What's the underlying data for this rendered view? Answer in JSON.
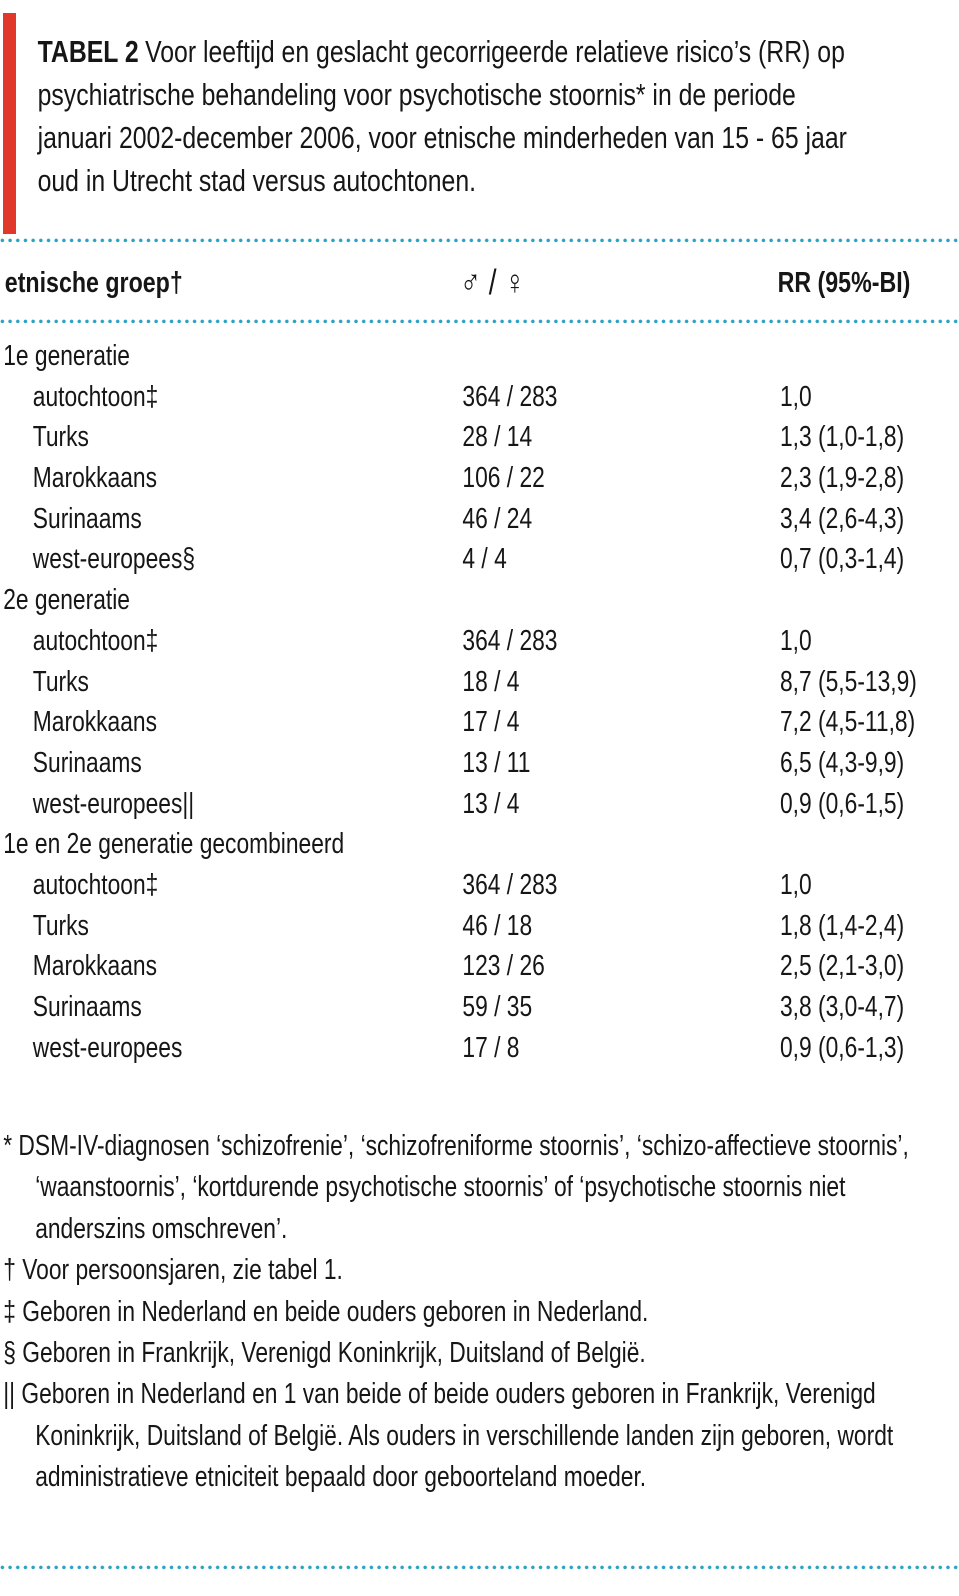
{
  "colors": {
    "accent_bar": "#E0392B",
    "dotted_rule": "#2BA2C4",
    "text": "#161616"
  },
  "title": {
    "label": "TABEL 2",
    "text": "Voor leeftijd en geslacht gecorrigeerde relatieve risico’s (RR) op psychiatrische behandeling voor psychotische stoornis* in de periode januari 2002-december 2006, voor etnische minderheden van 15 - 65 jaar oud in Utrecht stad versus autochtonen."
  },
  "table": {
    "columns": [
      {
        "key": "group",
        "label": "etnische groep†"
      },
      {
        "key": "mf",
        "label": "♂ / ♀"
      },
      {
        "key": "rr",
        "label": "RR (95%-BI)"
      }
    ],
    "sections": [
      {
        "header": "1e generatie",
        "rows": [
          {
            "group": "autochtoon‡",
            "mf": "364 / 283",
            "rr": "1,0"
          },
          {
            "group": "Turks",
            "mf": "28 / 14",
            "rr": "1,3 (1,0-1,8)"
          },
          {
            "group": "Marokkaans",
            "mf": "106 / 22",
            "rr": "2,3 (1,9-2,8)"
          },
          {
            "group": "Surinaams",
            "mf": "46 / 24",
            "rr": "3,4 (2,6-4,3)"
          },
          {
            "group": "west-europees§",
            "mf": "4 / 4",
            "rr": "0,7 (0,3-1,4)"
          }
        ]
      },
      {
        "header": "2e generatie",
        "rows": [
          {
            "group": "autochtoon‡",
            "mf": "364 / 283",
            "rr": "1,0"
          },
          {
            "group": "Turks",
            "mf": "18 / 4",
            "rr": "8,7 (5,5-13,9)"
          },
          {
            "group": "Marokkaans",
            "mf": "17 / 4",
            "rr": "7,2 (4,5-11,8)"
          },
          {
            "group": "Surinaams",
            "mf": "13 / 11",
            "rr": "6,5 (4,3-9,9)"
          },
          {
            "group": "west-europees||",
            "mf": "13 / 4",
            "rr": "0,9 (0,6-1,5)"
          }
        ]
      },
      {
        "header": "1e en 2e generatie gecombineerd",
        "rows": [
          {
            "group": "autochtoon‡",
            "mf": "364 / 283",
            "rr": "1,0"
          },
          {
            "group": "Turks",
            "mf": "46 / 18",
            "rr": "1,8 (1,4-2,4)"
          },
          {
            "group": "Marokkaans",
            "mf": "123 / 26",
            "rr": "2,5 (2,1-3,0)"
          },
          {
            "group": "Surinaams",
            "mf": "59 / 35",
            "rr": "3,8 (3,0-4,7)"
          },
          {
            "group": "west-europees",
            "mf": "17 / 8",
            "rr": "0,9 (0,6-1,3)"
          }
        ]
      }
    ]
  },
  "footnotes": [
    "* DSM-IV-diagnosen ‘schizofrenie’, ‘schizofreniforme stoornis’, ‘schizo-affectieve stoornis’, ‘waanstoornis’, ‘kortdurende psychotische stoornis’ of ‘psychotische stoornis niet anderszins omschreven’.",
    "† Voor persoonsjaren, zie tabel 1.",
    "‡ Geboren in Nederland en beide ouders geboren in Nederland.",
    "§ Geboren in Frankrijk, Verenigd Koninkrijk, Duitsland of België.",
    "|| Geboren in Nederland en 1 van beide of beide ouders geboren in Frankrijk, Verenigd Koninkrijk, Duitsland of België. Als ouders in verschillende landen zijn geboren, wordt administratieve etniciteit bepaald door geboorteland moeder."
  ]
}
